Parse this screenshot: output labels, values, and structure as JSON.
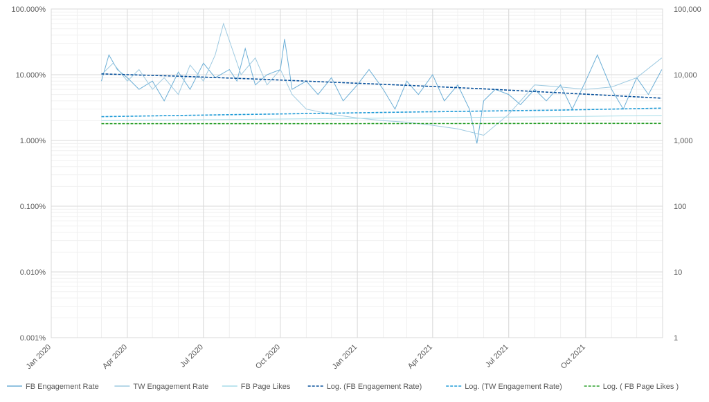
{
  "chart_data": {
    "type": "line",
    "title": "",
    "x_axis": {
      "type": "date",
      "range": [
        "2020-01-01",
        "2022-01-01"
      ],
      "tick_labels": [
        "Jan 2020",
        "Apr 2020",
        "Jul 2020",
        "Oct 2020",
        "Jan 2021",
        "Apr 2021",
        "Jul 2021",
        "Oct 2021"
      ],
      "tick_dates": [
        "2020-01-01",
        "2020-04-01",
        "2020-07-01",
        "2020-10-01",
        "2021-01-01",
        "2021-04-01",
        "2021-07-01",
        "2021-10-01"
      ]
    },
    "y_left": {
      "scale": "log",
      "range": [
        0.001,
        100
      ],
      "tick_values": [
        0.001,
        0.01,
        0.1,
        1,
        10,
        100
      ],
      "tick_labels": [
        "0.001%",
        "0.010%",
        "0.100%",
        "1.000%",
        "10.000%",
        "100.000%"
      ]
    },
    "y_right": {
      "scale": "log",
      "range": [
        1,
        100000
      ],
      "tick_values": [
        1,
        10,
        100,
        1000,
        10000,
        100000
      ],
      "tick_labels": [
        "1",
        "10",
        "100",
        "1,000",
        "10,000",
        "100,000"
      ]
    },
    "grid": true,
    "legend_position": "bottom",
    "legend": [
      {
        "label": "FB Engagement Rate",
        "color": "#6baed6",
        "style": "solid"
      },
      {
        "label": "TW Engagement Rate",
        "color": "#9ecae1",
        "style": "solid"
      },
      {
        "label": "FB Page Likes",
        "color": "#a6dce8",
        "style": "solid"
      },
      {
        "label": "Log. (FB Engagement Rate)",
        "color": "#08519c",
        "style": "dashed"
      },
      {
        "label": "Log. (TW Engagement Rate)",
        "color": "#1f9bd7",
        "style": "dashed"
      },
      {
        "label": "Log. ( FB Page Likes )",
        "color": "#2ca02c",
        "style": "dashed"
      }
    ],
    "series": [
      {
        "name": "FB Engagement Rate",
        "axis": "left",
        "color": "#6baed6",
        "x": [
          "2020-03-01",
          "2020-03-10",
          "2020-03-20",
          "2020-04-01",
          "2020-04-15",
          "2020-05-01",
          "2020-05-15",
          "2020-06-01",
          "2020-06-15",
          "2020-07-01",
          "2020-07-15",
          "2020-08-01",
          "2020-08-10",
          "2020-08-20",
          "2020-09-01",
          "2020-09-15",
          "2020-10-01",
          "2020-10-06",
          "2020-10-15",
          "2020-11-01",
          "2020-11-15",
          "2020-12-01",
          "2020-12-15",
          "2021-01-01",
          "2021-01-15",
          "2021-02-01",
          "2021-02-15",
          "2021-03-01",
          "2021-03-15",
          "2021-04-01",
          "2021-04-15",
          "2021-05-01",
          "2021-05-15",
          "2021-05-24",
          "2021-06-01",
          "2021-06-15",
          "2021-07-01",
          "2021-07-15",
          "2021-08-01",
          "2021-08-15",
          "2021-09-01",
          "2021-09-15",
          "2021-10-01",
          "2021-10-15",
          "2021-11-01",
          "2021-11-15",
          "2021-12-01",
          "2021-12-15",
          "2021-12-31"
        ],
        "values": [
          8,
          20,
          12,
          9,
          6,
          8,
          4,
          11,
          6,
          15,
          9,
          12,
          8,
          25,
          7,
          10,
          12,
          35,
          6,
          8,
          5,
          9,
          4,
          7,
          12,
          6,
          3,
          8,
          5,
          10,
          4,
          7,
          3,
          0.9,
          4,
          6,
          5,
          3.5,
          6,
          4,
          7,
          3,
          8,
          20,
          6,
          3,
          9,
          5,
          12
        ]
      },
      {
        "name": "TW Engagement Rate",
        "axis": "left",
        "color": "#9ecae1",
        "x": [
          "2020-03-01",
          "2020-03-15",
          "2020-04-01",
          "2020-04-15",
          "2020-05-01",
          "2020-05-15",
          "2020-06-01",
          "2020-06-15",
          "2020-07-01",
          "2020-07-15",
          "2020-07-25",
          "2020-08-15",
          "2020-09-01",
          "2020-09-15",
          "2020-10-01",
          "2020-10-15",
          "2020-11-01",
          "2020-12-01",
          "2021-01-01",
          "2021-02-01",
          "2021-03-01",
          "2021-04-01",
          "2021-05-01",
          "2021-06-01",
          "2021-07-01",
          "2021-08-01",
          "2021-09-01",
          "2021-10-01",
          "2021-11-01",
          "2021-12-01",
          "2021-12-31"
        ],
        "values": [
          10,
          15,
          8,
          12,
          6,
          9,
          5,
          14,
          8,
          20,
          60,
          10,
          18,
          7,
          12,
          5,
          3,
          2.5,
          2.2,
          2.0,
          1.9,
          1.7,
          1.5,
          1.2,
          2.5,
          7,
          6.5,
          6,
          6.5,
          9,
          18
        ]
      },
      {
        "name": "FB Page Likes",
        "axis": "right",
        "color": "#a6dce8",
        "x": [
          "2020-03-01",
          "2020-06-01",
          "2020-09-01",
          "2020-12-01",
          "2021-03-01",
          "2021-06-01",
          "2021-09-01",
          "2021-12-31"
        ],
        "values": [
          2000,
          2050,
          2100,
          2150,
          2200,
          2250,
          2300,
          2400
        ]
      },
      {
        "name": "Log. (FB Engagement Rate)",
        "axis": "left",
        "trendline": true,
        "color": "#08519c",
        "x": [
          "2020-03-01",
          "2020-06-01",
          "2020-09-01",
          "2020-12-01",
          "2021-03-01",
          "2021-06-01",
          "2021-09-01",
          "2021-12-31"
        ],
        "values": [
          10.3,
          9.5,
          8.6,
          7.7,
          6.9,
          6.1,
          5.3,
          4.4
        ]
      },
      {
        "name": "Log. (TW Engagement Rate)",
        "axis": "left",
        "trendline": true,
        "color": "#1f9bd7",
        "x": [
          "2020-03-01",
          "2020-06-01",
          "2020-09-01",
          "2020-12-01",
          "2021-03-01",
          "2021-06-01",
          "2021-09-01",
          "2021-12-31"
        ],
        "values": [
          2.3,
          2.4,
          2.5,
          2.6,
          2.7,
          2.8,
          2.9,
          3.1
        ]
      },
      {
        "name": "Log. ( FB Page Likes )",
        "axis": "right",
        "trendline": true,
        "color": "#2ca02c",
        "x": [
          "2020-03-01",
          "2020-06-01",
          "2020-09-01",
          "2020-12-01",
          "2021-03-01",
          "2021-06-01",
          "2021-09-01",
          "2021-12-31"
        ],
        "values": [
          1800,
          1800,
          1800,
          1800,
          1810,
          1810,
          1820,
          1820
        ]
      }
    ]
  }
}
